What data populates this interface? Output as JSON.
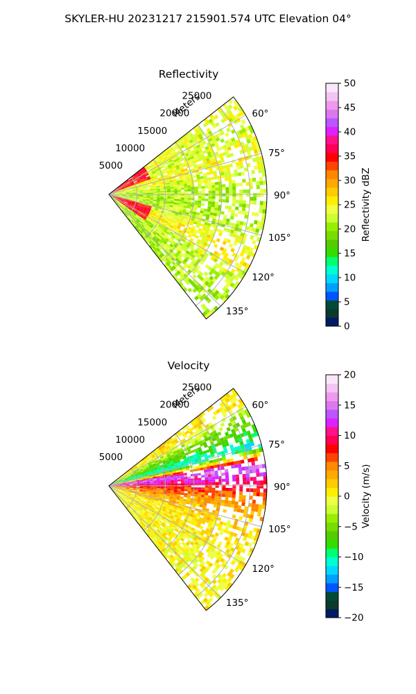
{
  "figure": {
    "suptitle": "SKYLER-HU  20231217  215901.574 UTC Elevation 04°"
  },
  "chart_data": [
    {
      "type": "heatmap",
      "title": "Reflectivity",
      "projection": "polar-sector",
      "radial_label": "Meters",
      "range_ticks": [
        "5000",
        "10000",
        "15000",
        "20000",
        "25000"
      ],
      "range_tick_values": [
        5000,
        10000,
        15000,
        20000,
        25000
      ],
      "range_max": 28000,
      "azimuth_range_deg": [
        52,
        142
      ],
      "azimuth_ticks": [
        "60°",
        "75°",
        "90°",
        "105°",
        "120°",
        "135°"
      ],
      "azimuth_tick_values": [
        60,
        75,
        90,
        105,
        120,
        135
      ],
      "grid": true,
      "colorbar": {
        "label": "Reflectivity dBZ",
        "min": 0,
        "max": 50,
        "ticks": [
          "0",
          "5",
          "10",
          "15",
          "20",
          "25",
          "30",
          "35",
          "40",
          "45",
          "50"
        ],
        "tick_values": [
          0,
          5,
          10,
          15,
          20,
          25,
          30,
          35,
          40,
          45,
          50
        ],
        "colors": [
          "#001a66",
          "#0a3a2a",
          "#004a38",
          "#0055ff",
          "#00a0ff",
          "#00d8ff",
          "#00ffd0",
          "#00ff70",
          "#33dd00",
          "#55cc00",
          "#77dd00",
          "#99ee00",
          "#ccff33",
          "#eeff44",
          "#ffee00",
          "#ffcc00",
          "#ffaa00",
          "#ff8800",
          "#ff4400",
          "#ff0000",
          "#ff0055",
          "#ff1188",
          "#dd22ff",
          "#bb55ff",
          "#dd77ee",
          "#ee99ee",
          "#f4c4f4",
          "#fae6fa"
        ]
      },
      "field_profile": [
        {
          "azimuth_deg": 55,
          "dbz": 24
        },
        {
          "azimuth_deg": 65,
          "dbz": 23
        },
        {
          "azimuth_deg": 75,
          "dbz": 25
        },
        {
          "azimuth_deg": 90,
          "dbz": 21
        },
        {
          "azimuth_deg": 105,
          "dbz": 22
        },
        {
          "azimuth_deg": 115,
          "dbz": 26
        },
        {
          "azimuth_deg": 125,
          "dbz": 22
        },
        {
          "azimuth_deg": 138,
          "dbz": 21
        }
      ],
      "near_range_core": {
        "range_max_m": 8000,
        "dbz": 35
      }
    },
    {
      "type": "heatmap",
      "title": "Velocity",
      "projection": "polar-sector",
      "radial_label": "Meters",
      "range_ticks": [
        "5000",
        "10000",
        "15000",
        "20000",
        "25000"
      ],
      "range_tick_values": [
        5000,
        10000,
        15000,
        20000,
        25000
      ],
      "range_max": 28000,
      "azimuth_range_deg": [
        52,
        142
      ],
      "azimuth_ticks": [
        "60°",
        "75°",
        "90°",
        "105°",
        "120°",
        "135°"
      ],
      "azimuth_tick_values": [
        60,
        75,
        90,
        105,
        120,
        135
      ],
      "grid": true,
      "colorbar": {
        "label": "Velocity (m/s)",
        "min": -20,
        "max": 20,
        "ticks": [
          "−20",
          "−15",
          "−10",
          "−5",
          "0",
          "5",
          "10",
          "15",
          "20"
        ],
        "tick_values": [
          -20,
          -15,
          -10,
          -5,
          0,
          5,
          10,
          15,
          20
        ],
        "colors": [
          "#001a66",
          "#0a3a2a",
          "#004a38",
          "#0055ff",
          "#00a0ff",
          "#00d8ff",
          "#00ffd0",
          "#00ff70",
          "#33dd00",
          "#55cc00",
          "#77dd00",
          "#99ee00",
          "#ccff33",
          "#eeff44",
          "#ffee00",
          "#ffcc00",
          "#ffaa00",
          "#ff8800",
          "#ff4400",
          "#ff0000",
          "#ff0055",
          "#ff1188",
          "#dd22ff",
          "#bb55ff",
          "#dd77ee",
          "#ee99ee",
          "#f4c4f4",
          "#fae6fa"
        ]
      },
      "field_profile": [
        {
          "azimuth_deg": 57,
          "ms": 1
        },
        {
          "azimuth_deg": 65,
          "ms": -5
        },
        {
          "azimuth_deg": 75,
          "ms": -11
        },
        {
          "azimuth_deg": 82,
          "ms": 15
        },
        {
          "azimuth_deg": 88,
          "ms": 10
        },
        {
          "azimuth_deg": 95,
          "ms": 5
        },
        {
          "azimuth_deg": 110,
          "ms": 1
        },
        {
          "azimuth_deg": 130,
          "ms": 0
        }
      ]
    }
  ]
}
